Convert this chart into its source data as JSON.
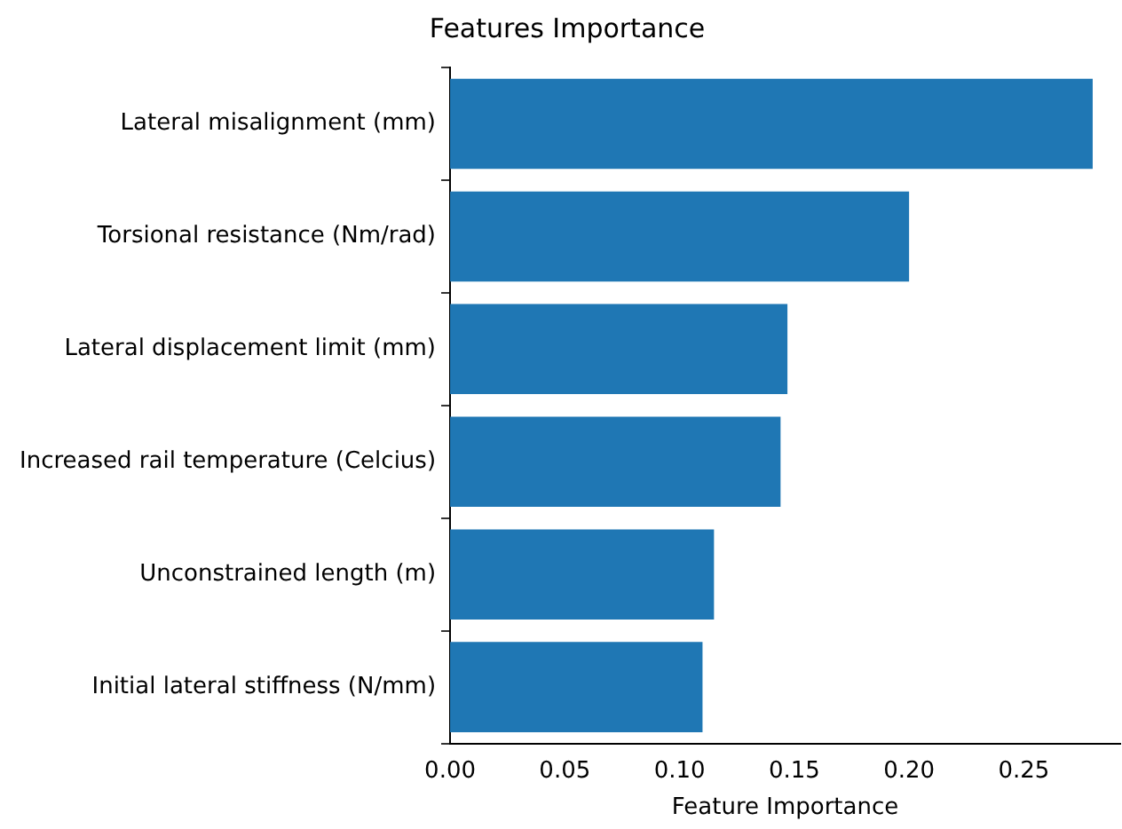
{
  "chart_data": {
    "type": "bar",
    "orientation": "horizontal",
    "title": "Features Importance",
    "xlabel": "Feature Importance",
    "categories": [
      "Lateral misalignment (mm)",
      "Torsional resistance (Nm/rad)",
      "Lateral displacement limit (mm)",
      "Increased rail temperature (Celcius)",
      "Unconstrained length (m)",
      "Initial lateral stiffness (N/mm)"
    ],
    "values": [
      0.28,
      0.2,
      0.147,
      0.144,
      0.115,
      0.11
    ],
    "color": "#1f77b4",
    "xlim": [
      0,
      0.292
    ],
    "xticks": [
      {
        "value": 0,
        "label": "0.00"
      },
      {
        "value": 0.05,
        "label": "0.05"
      },
      {
        "value": 0.1,
        "label": "0.10"
      },
      {
        "value": 0.15,
        "label": "0.15"
      },
      {
        "value": 0.2,
        "label": "0.20"
      },
      {
        "value": 0.25,
        "label": "0.25"
      }
    ],
    "grid": false,
    "legend": false
  }
}
